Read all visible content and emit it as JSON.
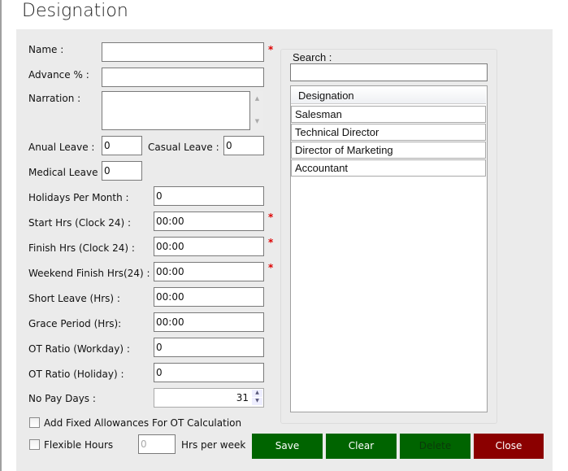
{
  "title": "Designation",
  "form": {
    "name_label": "Name :",
    "advance_label": "Advance %",
    "advance_colon": ":",
    "narration_label": "Narration :",
    "anual_label": "Anual Leave :",
    "anual_value": "0",
    "casual_label": "Casual Leave :",
    "casual_value": "0",
    "medical_label": "Medical Leave :",
    "medical_value": "0",
    "holidays_label": "Holidays Per Month :",
    "holidays_value": "0",
    "start_label": "Start Hrs (Clock 24) :",
    "start_value": "00:00",
    "finish_label": "Finish Hrs (Clock 24) :",
    "finish_value": "00:00",
    "weekend_label": "Weekend Finish Hrs(24) :",
    "weekend_value": "00:00",
    "short_label": "Short Leave (Hrs) :",
    "short_value": "00:00",
    "grace_label": "Grace Period (Hrs):",
    "grace_value": "00:00",
    "otwork_label": "OT Ratio (Workday) :",
    "otwork_value": "0",
    "otholiday_label": "OT Ratio (Holiday) :",
    "otholiday_value": "0",
    "nopay_label": "No Pay Days :",
    "nopay_value": "31",
    "fixed_allow_label": "Add Fixed Allowances For OT Calculation",
    "flexible_label": "Flexible Hours",
    "hrs_placeholder": "0",
    "hrs_label": "Hrs per week",
    "required_mark": "*"
  },
  "search": {
    "label": "Search :",
    "value": ""
  },
  "grid": {
    "header": "Designation",
    "rows": [
      "Salesman",
      "Technical Director",
      "Director of Marketing",
      "Accountant"
    ]
  },
  "buttons": {
    "save": "Save",
    "clear": "Clear",
    "delete": "Delete",
    "close": "Close"
  },
  "colors": {
    "green": "#006400",
    "red": "#8b0000",
    "disabled_text": "#0a3a0a"
  }
}
